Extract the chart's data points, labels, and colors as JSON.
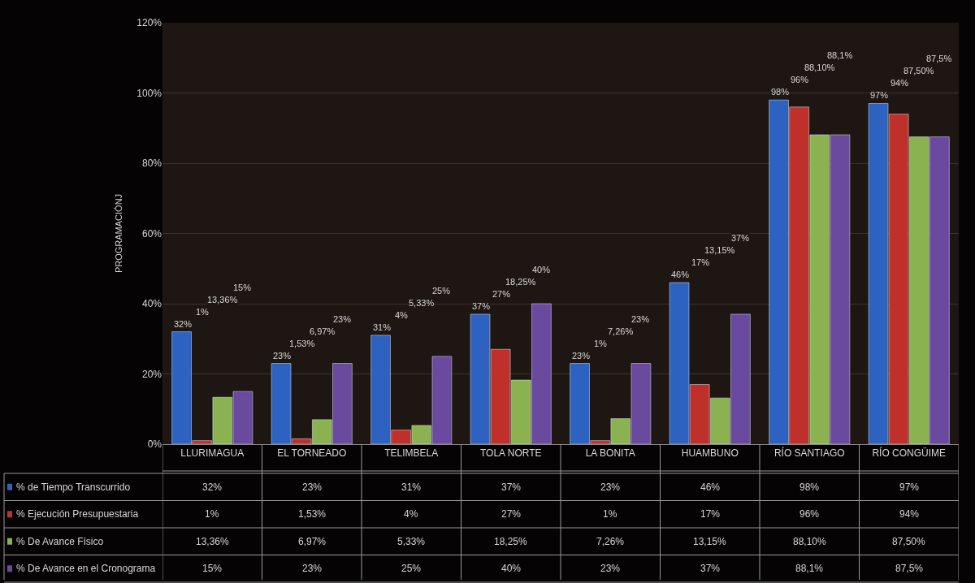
{
  "chart_data": {
    "type": "bar",
    "ylabel": "PROGRAMACIÓNJ",
    "categories": [
      "LLURIMAGUA",
      "EL TORNEADO",
      "TELIMBELA",
      "TOLA NORTE",
      "LA BONITA",
      "HUAMBUNO",
      "RÍO SANTIAGO",
      "RÍO CONGÜIME"
    ],
    "series": [
      {
        "name": "% de Tiempo Transcurrido",
        "color": "#2e62c0",
        "values": [
          32,
          23,
          31,
          37,
          23,
          46,
          98,
          97
        ],
        "value_labels": [
          "32%",
          "23%",
          "31%",
          "37%",
          "23%",
          "46%",
          "98%",
          "97%"
        ]
      },
      {
        "name": "% Ejecución Presupuestaria",
        "color": "#c0302a",
        "values": [
          1,
          1.53,
          4,
          27,
          1,
          17,
          96,
          94
        ],
        "value_labels": [
          "1%",
          "1,53%",
          "4%",
          "27%",
          "1%",
          "17%",
          "96%",
          "94%"
        ]
      },
      {
        "name": "% De Avance Físico",
        "color": "#8ab251",
        "values": [
          13.36,
          6.97,
          5.33,
          18.25,
          7.26,
          13.15,
          88.1,
          87.5
        ],
        "value_labels": [
          "13,36%",
          "6,97%",
          "5,33%",
          "18,25%",
          "7,26%",
          "13,15%",
          "88,10%",
          "87,50%"
        ]
      },
      {
        "name": "% De Avance en el Cronograma",
        "color": "#6a4a9e",
        "values": [
          15,
          23,
          25,
          40,
          23,
          37,
          88.1,
          87.5
        ],
        "value_labels": [
          "15%",
          "23%",
          "25%",
          "40%",
          "23%",
          "37%",
          "88,1%",
          "87,5%"
        ]
      }
    ],
    "ylim": [
      0,
      120
    ],
    "yticks": [
      {
        "value": 0,
        "label": "0%"
      },
      {
        "value": 20,
        "label": "20%"
      },
      {
        "value": 40,
        "label": "40%"
      },
      {
        "value": 60,
        "label": "60%"
      },
      {
        "value": 80,
        "label": "80%"
      },
      {
        "value": 100,
        "label": "100%"
      },
      {
        "value": 120,
        "label": "120%"
      }
    ],
    "grid": "y",
    "legend": "bottom left"
  }
}
